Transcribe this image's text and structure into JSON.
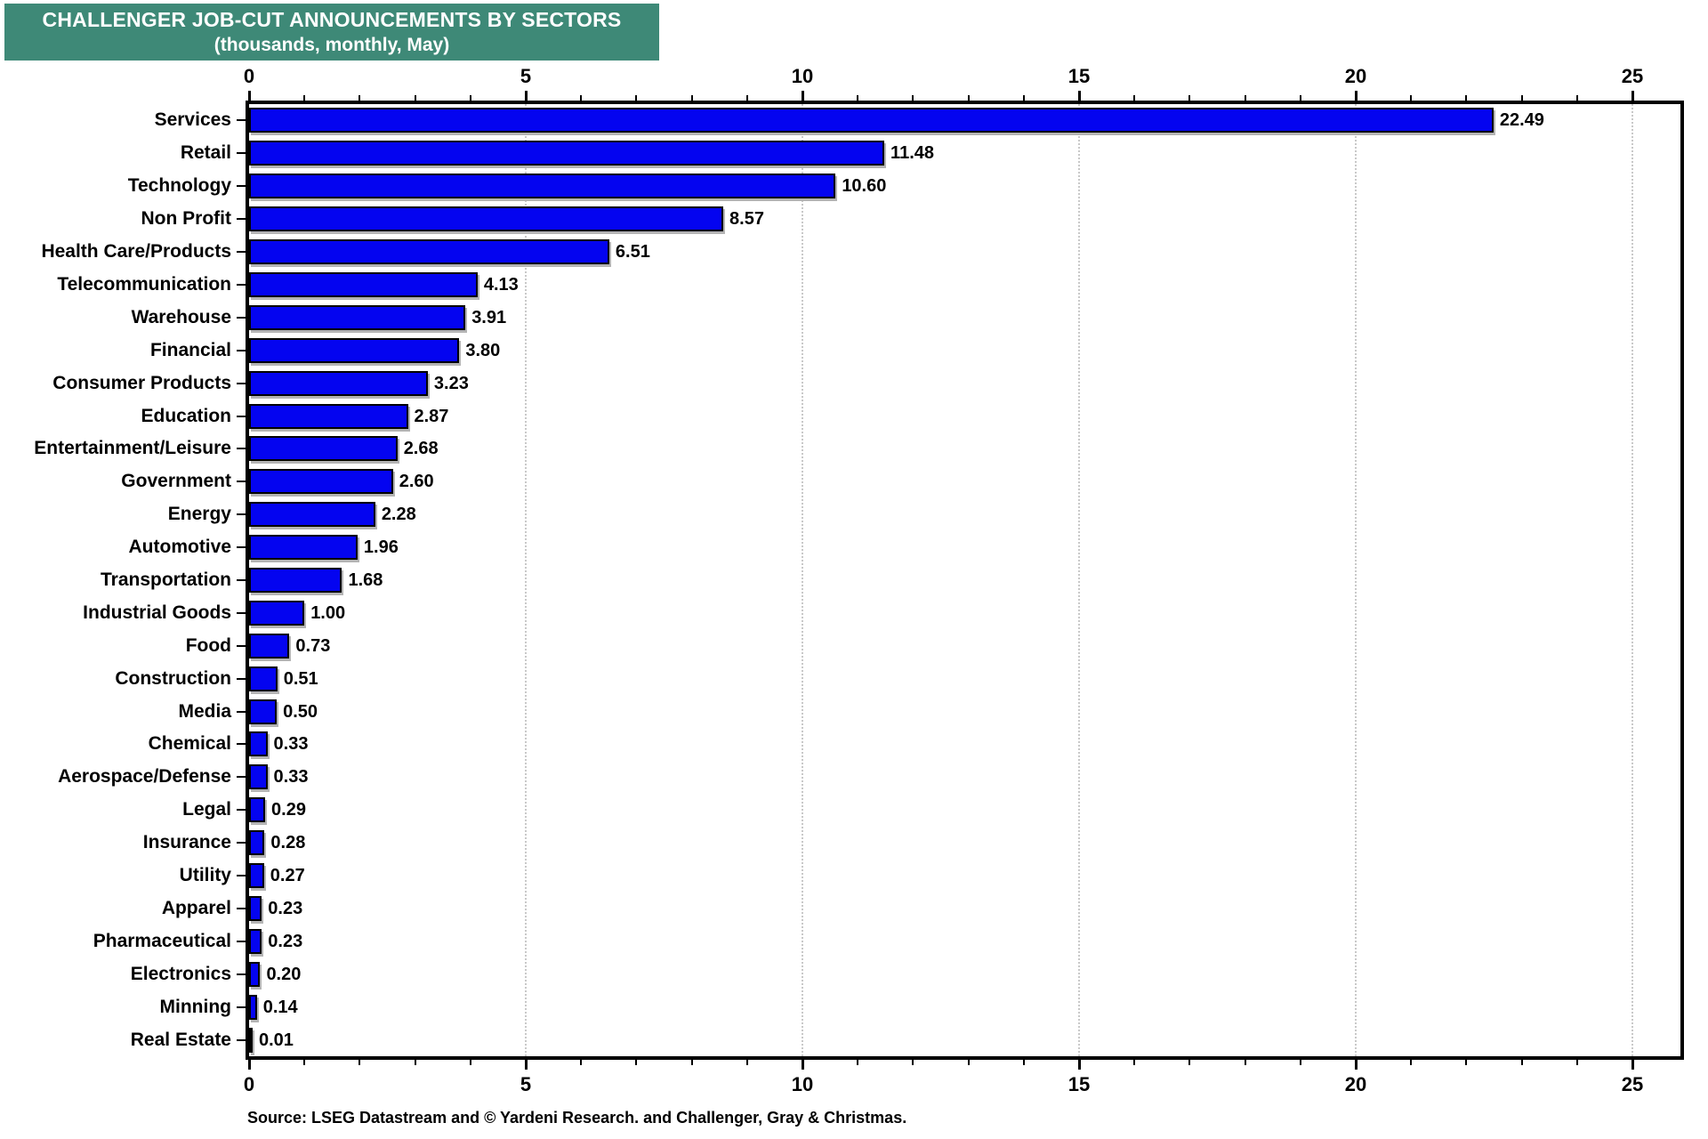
{
  "title": {
    "line1": "CHALLENGER JOB-CUT ANNOUNCEMENTS BY SECTORS",
    "line2": "(thousands, monthly, May)"
  },
  "source": "Source: LSEG Datastream and © Yardeni Research. and Challenger, Gray & Christmas.",
  "colors": {
    "title_bg": "#3E8977",
    "title_text": "#FFFFFF",
    "bar_fill": "#0404F0",
    "bar_border": "#000000",
    "grid_line": "#C9C9C9",
    "frame": "#000000",
    "text": "#000000",
    "background": "#FFFFFF"
  },
  "chart_data": {
    "type": "bar",
    "orientation": "horizontal",
    "title": "CHALLENGER JOB-CUT ANNOUNCEMENTS BY SECTORS",
    "subtitle": "(thousands, monthly, May)",
    "unit": "thousands",
    "categories": [
      "Services",
      "Retail",
      "Technology",
      "Non Profit",
      "Health Care/Products",
      "Telecommunication",
      "Warehouse",
      "Financial",
      "Consumer Products",
      "Education",
      "Entertainment/Leisure",
      "Government",
      "Energy",
      "Automotive",
      "Transportation",
      "Industrial Goods",
      "Food",
      "Construction",
      "Media",
      "Chemical",
      "Aerospace/Defense",
      "Legal",
      "Insurance",
      "Utility",
      "Apparel",
      "Pharmaceutical",
      "Electronics",
      "Minning",
      "Real Estate"
    ],
    "values": [
      22.49,
      11.48,
      10.6,
      8.57,
      6.51,
      4.13,
      3.91,
      3.8,
      3.23,
      2.87,
      2.68,
      2.6,
      2.28,
      1.96,
      1.68,
      1.0,
      0.73,
      0.51,
      0.5,
      0.33,
      0.33,
      0.29,
      0.28,
      0.27,
      0.23,
      0.23,
      0.2,
      0.14,
      0.01
    ],
    "value_label_decimals": 2,
    "xlim": [
      0,
      26
    ],
    "xticks": [
      0,
      5,
      10,
      15,
      20,
      25
    ],
    "minor_tick_step": 1,
    "grid": "vertical dotted lines at major ticks",
    "axis_labels_position": "top and bottom",
    "legend": "none"
  }
}
